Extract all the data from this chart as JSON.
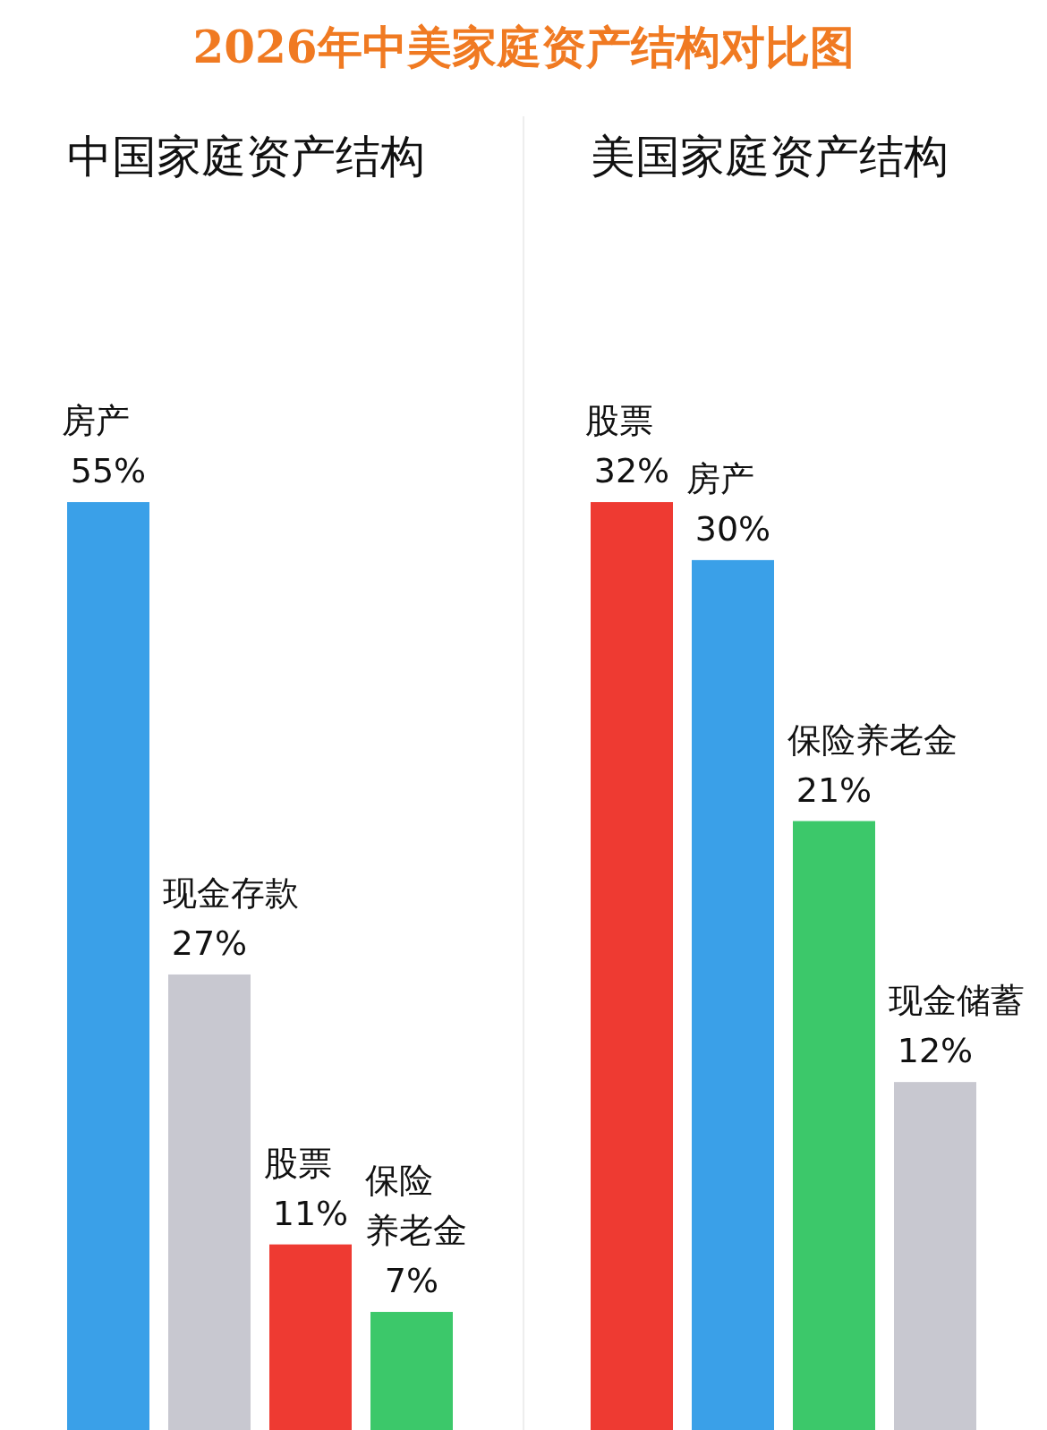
{
  "chart_data": [
    {
      "type": "bar",
      "title": "2026年中美家庭资产结构对比图",
      "subtitle": "中国家庭资产结构",
      "categories": [
        "房产",
        "现金存款",
        "股票",
        "保险养老金"
      ],
      "values": [
        55,
        27,
        11,
        7
      ],
      "colors": [
        "#3aa0e8",
        "#c8c8d0",
        "#ee3a32",
        "#3cc86a"
      ],
      "value_labels": [
        "55%",
        "27%",
        "11%",
        "7%"
      ]
    },
    {
      "type": "bar",
      "subtitle": "美国家庭资产结构",
      "categories": [
        "股票",
        "房产",
        "保险养老金",
        "现金储蓄"
      ],
      "values": [
        32,
        30,
        21,
        12
      ],
      "colors": [
        "#ee3a32",
        "#3aa0e8",
        "#3cc86a",
        "#c8c8d0"
      ],
      "value_labels": [
        "32%",
        "30%",
        "21%",
        "12%"
      ]
    }
  ]
}
